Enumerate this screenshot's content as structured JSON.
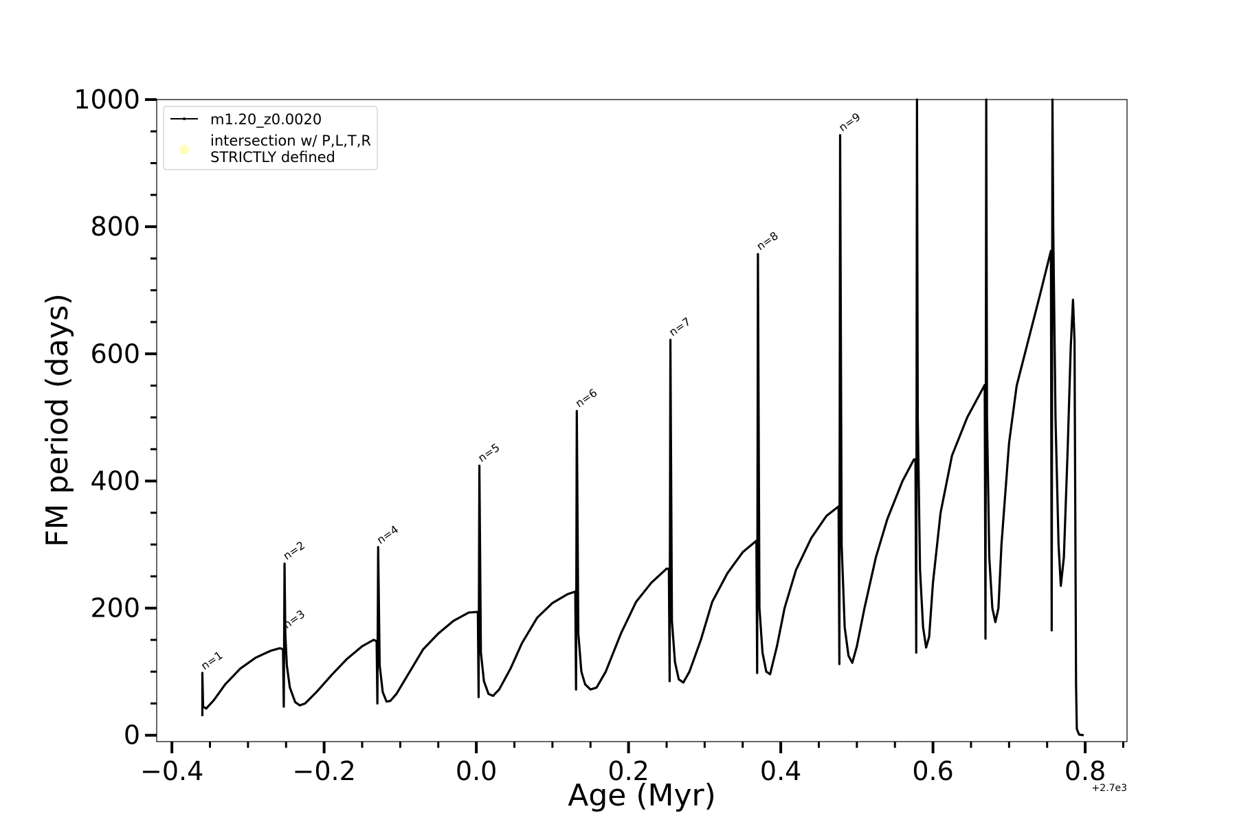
{
  "chart_data": {
    "type": "line",
    "xlabel": "Age (Myr)",
    "ylabel": "FM period (days)",
    "x_offset_label": "+2.7e3",
    "xlim": [
      -0.42,
      0.855
    ],
    "ylim": [
      -10,
      1000
    ],
    "x_ticks": [
      -0.4,
      -0.2,
      0.0,
      0.2,
      0.4,
      0.6,
      0.8
    ],
    "x_tick_labels": [
      "−0.4",
      "−0.2",
      "0.0",
      "0.2",
      "0.4",
      "0.6",
      "0.8"
    ],
    "y_ticks": [
      0,
      200,
      400,
      600,
      800,
      1000
    ],
    "y_tick_labels": [
      "0",
      "200",
      "400",
      "600",
      "800",
      "1000"
    ],
    "grid": false,
    "legend": {
      "placement": "top-left",
      "entries": [
        {
          "label": "m1.20_z0.0020",
          "marker": "line-with-dots",
          "color": "#000000"
        },
        {
          "label_line1": "intersection w/ P,L,T,R",
          "label_line2": "STRICTLY defined",
          "marker": "circle",
          "color": "#ffffbb"
        }
      ]
    },
    "series": [
      {
        "name": "m1.20_z0.0020",
        "color": "#000000",
        "points": [
          [
            -0.36,
            30
          ],
          [
            -0.36,
            98
          ],
          [
            -0.359,
            45
          ],
          [
            -0.355,
            42
          ],
          [
            -0.345,
            55
          ],
          [
            -0.33,
            80
          ],
          [
            -0.31,
            105
          ],
          [
            -0.29,
            122
          ],
          [
            -0.27,
            133
          ],
          [
            -0.258,
            137
          ],
          [
            -0.254,
            135
          ],
          [
            -0.253,
            45
          ],
          [
            -0.252,
            270
          ],
          [
            -0.251,
            160
          ],
          [
            -0.249,
            110
          ],
          [
            -0.245,
            75
          ],
          [
            -0.238,
            52
          ],
          [
            -0.232,
            47
          ],
          [
            -0.225,
            50
          ],
          [
            -0.21,
            68
          ],
          [
            -0.19,
            95
          ],
          [
            -0.17,
            120
          ],
          [
            -0.15,
            140
          ],
          [
            -0.135,
            150
          ],
          [
            -0.131,
            148
          ],
          [
            -0.13,
            50
          ],
          [
            -0.129,
            296
          ],
          [
            -0.127,
            110
          ],
          [
            -0.123,
            68
          ],
          [
            -0.118,
            53
          ],
          [
            -0.113,
            54
          ],
          [
            -0.105,
            65
          ],
          [
            -0.09,
            95
          ],
          [
            -0.07,
            135
          ],
          [
            -0.05,
            160
          ],
          [
            -0.03,
            180
          ],
          [
            -0.01,
            193
          ],
          [
            0.002,
            194
          ],
          [
            0.003,
            60
          ],
          [
            0.004,
            424
          ],
          [
            0.006,
            130
          ],
          [
            0.01,
            85
          ],
          [
            0.016,
            65
          ],
          [
            0.022,
            62
          ],
          [
            0.03,
            72
          ],
          [
            0.045,
            105
          ],
          [
            0.06,
            145
          ],
          [
            0.08,
            185
          ],
          [
            0.1,
            208
          ],
          [
            0.12,
            222
          ],
          [
            0.13,
            226
          ],
          [
            0.131,
            72
          ],
          [
            0.132,
            510
          ],
          [
            0.134,
            160
          ],
          [
            0.138,
            100
          ],
          [
            0.143,
            80
          ],
          [
            0.15,
            72
          ],
          [
            0.158,
            75
          ],
          [
            0.17,
            100
          ],
          [
            0.19,
            160
          ],
          [
            0.21,
            210
          ],
          [
            0.23,
            240
          ],
          [
            0.25,
            262
          ],
          [
            0.253,
            262
          ],
          [
            0.254,
            85
          ],
          [
            0.255,
            622
          ],
          [
            0.257,
            180
          ],
          [
            0.261,
            115
          ],
          [
            0.266,
            88
          ],
          [
            0.272,
            83
          ],
          [
            0.28,
            100
          ],
          [
            0.295,
            150
          ],
          [
            0.31,
            210
          ],
          [
            0.33,
            255
          ],
          [
            0.35,
            288
          ],
          [
            0.368,
            306
          ],
          [
            0.369,
            98
          ],
          [
            0.37,
            757
          ],
          [
            0.372,
            200
          ],
          [
            0.376,
            130
          ],
          [
            0.381,
            100
          ],
          [
            0.386,
            96
          ],
          [
            0.395,
            140
          ],
          [
            0.405,
            200
          ],
          [
            0.42,
            260
          ],
          [
            0.44,
            310
          ],
          [
            0.46,
            345
          ],
          [
            0.476,
            360
          ],
          [
            0.477,
            112
          ],
          [
            0.478,
            944
          ],
          [
            0.48,
            300
          ],
          [
            0.484,
            170
          ],
          [
            0.489,
            125
          ],
          [
            0.494,
            114
          ],
          [
            0.5,
            140
          ],
          [
            0.51,
            200
          ],
          [
            0.525,
            280
          ],
          [
            0.54,
            340
          ],
          [
            0.56,
            400
          ],
          [
            0.575,
            434
          ],
          [
            0.577,
            434
          ],
          [
            0.578,
            130
          ],
          [
            0.579,
            1000
          ],
          [
            0.58,
            500
          ],
          [
            0.583,
            260
          ],
          [
            0.587,
            170
          ],
          [
            0.591,
            138
          ],
          [
            0.595,
            155
          ],
          [
            0.6,
            240
          ],
          [
            0.61,
            350
          ],
          [
            0.625,
            440
          ],
          [
            0.645,
            500
          ],
          [
            0.668,
            551
          ],
          [
            0.669,
            152
          ],
          [
            0.67,
            1000
          ],
          [
            0.671,
            500
          ],
          [
            0.674,
            280
          ],
          [
            0.678,
            200
          ],
          [
            0.682,
            178
          ],
          [
            0.686,
            200
          ],
          [
            0.69,
            300
          ],
          [
            0.7,
            460
          ],
          [
            0.71,
            550
          ],
          [
            0.725,
            620
          ],
          [
            0.74,
            690
          ],
          [
            0.755,
            762
          ],
          [
            0.756,
            165
          ],
          [
            0.757,
            1000
          ],
          [
            0.758,
            800
          ],
          [
            0.761,
            500
          ],
          [
            0.765,
            300
          ],
          [
            0.768,
            235
          ],
          [
            0.772,
            280
          ],
          [
            0.777,
            450
          ],
          [
            0.781,
            610
          ],
          [
            0.784,
            685
          ],
          [
            0.786,
            620
          ],
          [
            0.787,
            350
          ],
          [
            0.788,
            80
          ],
          [
            0.789,
            10
          ],
          [
            0.792,
            1
          ],
          [
            0.798,
            0
          ]
        ]
      }
    ],
    "annotations": [
      {
        "text": "n=1",
        "x": -0.359,
        "y": 100
      },
      {
        "text": "n=2",
        "x": -0.251,
        "y": 273
      },
      {
        "text": "n=3",
        "x": -0.251,
        "y": 165
      },
      {
        "text": "n=4",
        "x": -0.128,
        "y": 298
      },
      {
        "text": "n=5",
        "x": 0.005,
        "y": 427
      },
      {
        "text": "n=6",
        "x": 0.133,
        "y": 513
      },
      {
        "text": "n=7",
        "x": 0.256,
        "y": 625
      },
      {
        "text": "n=8",
        "x": 0.371,
        "y": 760
      },
      {
        "text": "n=9",
        "x": 0.479,
        "y": 947
      }
    ]
  }
}
